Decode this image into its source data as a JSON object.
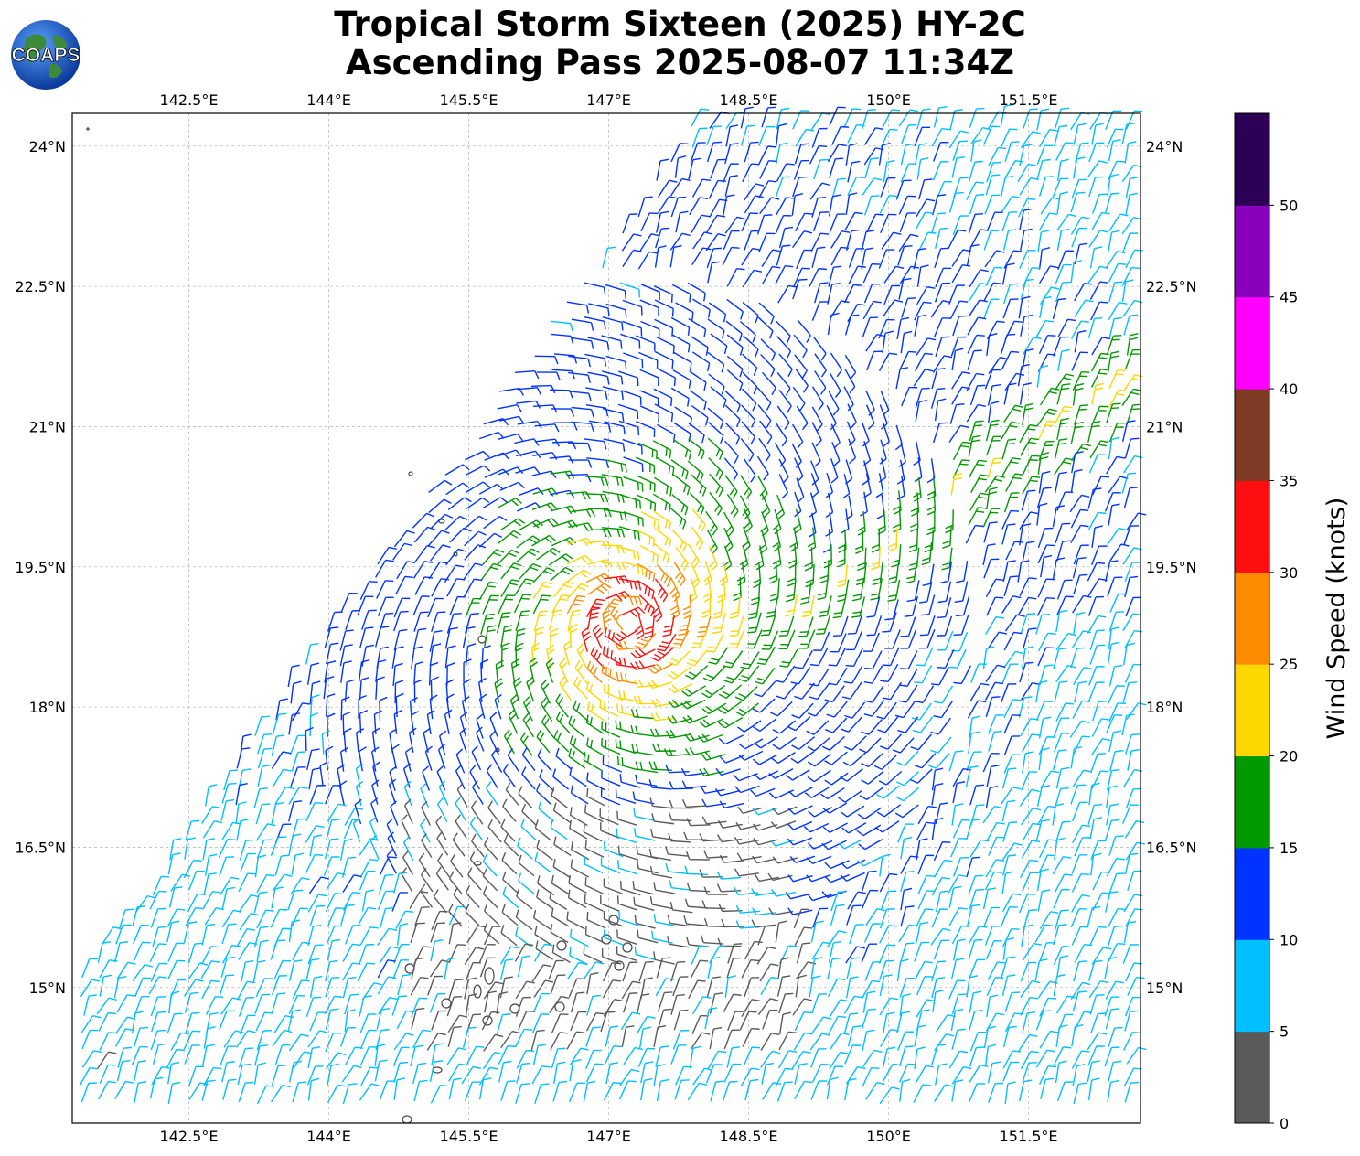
{
  "title_line1": "Tropical Storm Sixteen (2025) HY-2C",
  "title_line2": "Ascending Pass 2025-08-07 11:34Z",
  "logo": {
    "text": "COAPS",
    "icon": "globe-logo-icon"
  },
  "map": {
    "lon_range": [
      141.25,
      152.7
    ],
    "lat_range": [
      13.55,
      24.35
    ],
    "lon_ticks": [
      "142.5°E",
      "144°E",
      "145.5°E",
      "147°E",
      "148.5°E",
      "150°E",
      "151.5°E"
    ],
    "lon_tick_values": [
      142.5,
      144,
      145.5,
      147,
      148.5,
      150,
      151.5
    ],
    "lat_ticks": [
      "24°N",
      "22.5°N",
      "21°N",
      "19.5°N",
      "18°N",
      "16.5°N",
      "15°N"
    ],
    "lat_tick_values": [
      24,
      22.5,
      21,
      19.5,
      18,
      16.5,
      15
    ],
    "grid": true,
    "storm_center": {
      "lon": 147.2,
      "lat": 18.9
    }
  },
  "colorbar": {
    "title": "Wind Speed (knots)",
    "ticks": [
      "0",
      "5",
      "10",
      "15",
      "20",
      "25",
      "30",
      "35",
      "40",
      "45",
      "50"
    ],
    "colors": [
      "#5a5a5a",
      "#00bfff",
      "#0033ff",
      "#009900",
      "#ffd700",
      "#ff8c00",
      "#ff1010",
      "#7f3a25",
      "#ff00ff",
      "#8800bb",
      "#2b0055"
    ]
  }
}
